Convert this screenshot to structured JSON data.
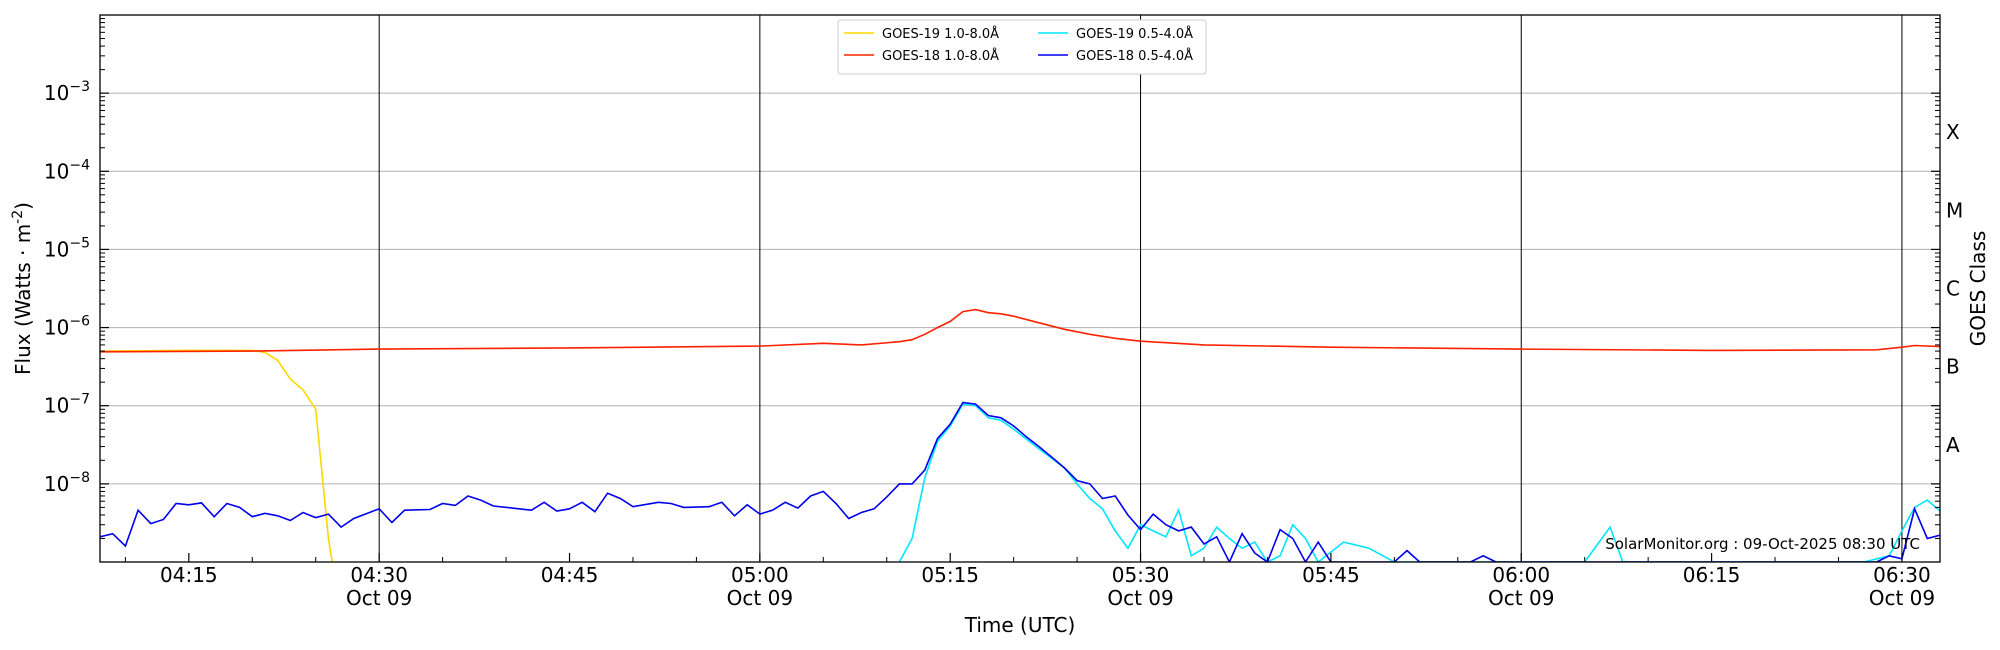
{
  "chart_data": {
    "type": "line",
    "title": "",
    "xlabel": "Time (UTC)",
    "ylabel": "Flux (Watts · m^-2)",
    "y2label": "GOES Class",
    "yscale": "log",
    "ylim": [
      1e-09,
      0.01
    ],
    "xlim": [
      "04:08",
      "06:33"
    ],
    "grid": "horizontal at decades",
    "legend_position": "top-center",
    "watermark": "SolarMonitor.org : 09-Oct-2025 08:30 UTC",
    "x_ticks": [
      {
        "t": "04:15",
        "label": "04:15",
        "sub": ""
      },
      {
        "t": "04:30",
        "label": "04:30",
        "sub": "Oct 09"
      },
      {
        "t": "04:45",
        "label": "04:45",
        "sub": ""
      },
      {
        "t": "05:00",
        "label": "05:00",
        "sub": "Oct 09"
      },
      {
        "t": "05:15",
        "label": "05:15",
        "sub": ""
      },
      {
        "t": "05:30",
        "label": "05:30",
        "sub": "Oct 09"
      },
      {
        "t": "05:45",
        "label": "05:45",
        "sub": ""
      },
      {
        "t": "06:00",
        "label": "06:00",
        "sub": "Oct 09"
      },
      {
        "t": "06:15",
        "label": "06:15",
        "sub": ""
      },
      {
        "t": "06:30",
        "label": "06:30",
        "sub": "Oct 09"
      }
    ],
    "vertical_lines": [
      "04:30",
      "05:00",
      "05:30",
      "06:00",
      "06:30"
    ],
    "y_ticks": [
      {
        "exp": -8,
        "label": "10",
        "sup": "−8"
      },
      {
        "exp": -7,
        "label": "10",
        "sup": "−7"
      },
      {
        "exp": -6,
        "label": "10",
        "sup": "−6"
      },
      {
        "exp": -5,
        "label": "10",
        "sup": "−5"
      },
      {
        "exp": -4,
        "label": "10",
        "sup": "−4"
      },
      {
        "exp": -3,
        "label": "10",
        "sup": "−3"
      }
    ],
    "goes_classes": [
      {
        "label": "A",
        "exp": -7.5
      },
      {
        "label": "B",
        "exp": -6.5
      },
      {
        "label": "C",
        "exp": -5.5
      },
      {
        "label": "M",
        "exp": -4.5
      },
      {
        "label": "X",
        "exp": -3.5
      }
    ],
    "series": [
      {
        "name": "GOES-19 1.0-8.0Å",
        "color": "#ffd700",
        "points": [
          [
            "04:08",
            5e-07
          ],
          [
            "04:15",
            5.1e-07
          ],
          [
            "04:20",
            5.1e-07
          ],
          [
            "04:21",
            4.8e-07
          ],
          [
            "04:22",
            3.8e-07
          ],
          [
            "04:23",
            2.2e-07
          ],
          [
            "04:24",
            1.6e-07
          ],
          [
            "04:25",
            9e-08
          ],
          [
            "04:26",
            2e-09
          ],
          [
            "04:26.3",
            1e-09
          ]
        ]
      },
      {
        "name": "GOES-18 1.0-8.0Å",
        "color": "#ff2200",
        "points": [
          [
            "04:08",
            4.9e-07
          ],
          [
            "04:20",
            5e-07
          ],
          [
            "04:30",
            5.3e-07
          ],
          [
            "04:45",
            5.5e-07
          ],
          [
            "05:00",
            5.8e-07
          ],
          [
            "05:05",
            6.3e-07
          ],
          [
            "05:08",
            6e-07
          ],
          [
            "05:11",
            6.6e-07
          ],
          [
            "05:12",
            7e-07
          ],
          [
            "05:13",
            8.2e-07
          ],
          [
            "05:14",
            1e-06
          ],
          [
            "05:15",
            1.2e-06
          ],
          [
            "05:16",
            1.6e-06
          ],
          [
            "05:17",
            1.7e-06
          ],
          [
            "05:18",
            1.55e-06
          ],
          [
            "05:19",
            1.5e-06
          ],
          [
            "05:20",
            1.4e-06
          ],
          [
            "05:22",
            1.15e-06
          ],
          [
            "05:24",
            9.5e-07
          ],
          [
            "05:26",
            8.2e-07
          ],
          [
            "05:28",
            7.3e-07
          ],
          [
            "05:30",
            6.7e-07
          ],
          [
            "05:35",
            6e-07
          ],
          [
            "05:45",
            5.6e-07
          ],
          [
            "06:00",
            5.3e-07
          ],
          [
            "06:15",
            5.1e-07
          ],
          [
            "06:28",
            5.2e-07
          ],
          [
            "06:30",
            5.6e-07
          ],
          [
            "06:31",
            5.9e-07
          ],
          [
            "06:33",
            5.7e-07
          ]
        ]
      },
      {
        "name": "GOES-19 0.5-4.0Å",
        "color": "#00e5ff",
        "points": [
          [
            "05:11",
            1e-09
          ],
          [
            "05:12",
            2e-09
          ],
          [
            "05:13",
            1.2e-08
          ],
          [
            "05:14",
            3.5e-08
          ],
          [
            "05:15",
            5.5e-08
          ],
          [
            "05:16",
            1.05e-07
          ],
          [
            "05:17",
            1e-07
          ],
          [
            "05:18",
            7e-08
          ],
          [
            "05:19",
            6.5e-08
          ],
          [
            "05:20",
            5e-08
          ],
          [
            "05:22",
            2.8e-08
          ],
          [
            "05:24",
            1.6e-08
          ],
          [
            "05:25",
            1e-08
          ],
          [
            "05:26",
            6.5e-09
          ],
          [
            "05:27",
            4.8e-09
          ],
          [
            "05:28",
            2.5e-09
          ],
          [
            "05:29",
            1.5e-09
          ],
          [
            "05:30",
            3e-09
          ],
          [
            "05:31",
            2.5e-09
          ],
          [
            "05:32",
            2.1e-09
          ],
          [
            "05:33",
            4.6e-09
          ],
          [
            "05:34",
            1.2e-09
          ],
          [
            "05:35",
            1.5e-09
          ],
          [
            "05:36",
            2.8e-09
          ],
          [
            "05:37",
            2e-09
          ],
          [
            "05:38",
            1.5e-09
          ],
          [
            "05:39",
            1.8e-09
          ],
          [
            "05:40",
            1e-09
          ],
          [
            "05:41",
            1.2e-09
          ],
          [
            "05:42",
            3e-09
          ],
          [
            "05:43",
            2e-09
          ],
          [
            "05:44",
            1e-09
          ],
          [
            "05:46",
            1.8e-09
          ],
          [
            "05:48",
            1.5e-09
          ],
          [
            "05:50",
            1e-09
          ],
          [
            "06:05",
            1e-09
          ],
          [
            "06:07",
            2.8e-09
          ],
          [
            "06:08",
            1e-09
          ],
          [
            "06:27",
            1e-09
          ],
          [
            "06:29",
            1.2e-09
          ],
          [
            "06:30",
            2.5e-09
          ],
          [
            "06:31",
            5e-09
          ],
          [
            "06:32",
            6.2e-09
          ],
          [
            "06:33",
            4.5e-09
          ]
        ]
      },
      {
        "name": "GOES-18 0.5-4.0Å",
        "color": "#0000ee",
        "points": [
          [
            "04:08",
            2.1e-09
          ],
          [
            "04:09",
            2.3e-09
          ],
          [
            "04:10",
            1.6e-09
          ],
          [
            "04:11",
            4.6e-09
          ],
          [
            "04:12",
            3.1e-09
          ],
          [
            "04:13",
            3.5e-09
          ],
          [
            "04:14",
            5.6e-09
          ],
          [
            "04:15",
            5.4e-09
          ],
          [
            "04:16",
            5.7e-09
          ],
          [
            "04:17",
            3.8e-09
          ],
          [
            "04:18",
            5.6e-09
          ],
          [
            "04:19",
            5e-09
          ],
          [
            "04:20",
            3.8e-09
          ],
          [
            "04:21",
            4.2e-09
          ],
          [
            "04:22",
            3.9e-09
          ],
          [
            "04:23",
            3.4e-09
          ],
          [
            "04:24",
            4.3e-09
          ],
          [
            "04:25",
            3.7e-09
          ],
          [
            "04:26",
            4.1e-09
          ],
          [
            "04:27",
            2.8e-09
          ],
          [
            "04:28",
            3.6e-09
          ],
          [
            "04:30",
            4.8e-09
          ],
          [
            "04:31",
            3.2e-09
          ],
          [
            "04:32",
            4.6e-09
          ],
          [
            "04:34",
            4.7e-09
          ],
          [
            "04:35",
            5.6e-09
          ],
          [
            "04:36",
            5.3e-09
          ],
          [
            "04:37",
            7e-09
          ],
          [
            "04:38",
            6.2e-09
          ],
          [
            "04:39",
            5.2e-09
          ],
          [
            "04:41",
            4.8e-09
          ],
          [
            "04:42",
            4.6e-09
          ],
          [
            "04:43",
            5.8e-09
          ],
          [
            "04:44",
            4.5e-09
          ],
          [
            "04:45",
            4.8e-09
          ],
          [
            "04:46",
            5.8e-09
          ],
          [
            "04:47",
            4.4e-09
          ],
          [
            "04:48",
            7.6e-09
          ],
          [
            "04:49",
            6.5e-09
          ],
          [
            "04:50",
            5.1e-09
          ],
          [
            "04:52",
            5.8e-09
          ],
          [
            "04:53",
            5.6e-09
          ],
          [
            "04:54",
            5e-09
          ],
          [
            "04:56",
            5.1e-09
          ],
          [
            "04:57",
            5.8e-09
          ],
          [
            "04:58",
            3.9e-09
          ],
          [
            "04:59",
            5.4e-09
          ],
          [
            "05:00",
            4.1e-09
          ],
          [
            "05:01",
            4.6e-09
          ],
          [
            "05:02",
            5.8e-09
          ],
          [
            "05:03",
            4.9e-09
          ],
          [
            "05:04",
            7e-09
          ],
          [
            "05:05",
            8e-09
          ],
          [
            "05:06",
            5.6e-09
          ],
          [
            "05:07",
            3.6e-09
          ],
          [
            "05:08",
            4.3e-09
          ],
          [
            "05:09",
            4.8e-09
          ],
          [
            "05:10",
            6.8e-09
          ],
          [
            "05:11",
            1e-08
          ],
          [
            "05:12",
            1e-08
          ],
          [
            "05:13",
            1.5e-08
          ],
          [
            "05:14",
            3.8e-08
          ],
          [
            "05:15",
            5.8e-08
          ],
          [
            "05:16",
            1.1e-07
          ],
          [
            "05:17",
            1.05e-07
          ],
          [
            "05:18",
            7.5e-08
          ],
          [
            "05:19",
            7e-08
          ],
          [
            "05:20",
            5.5e-08
          ],
          [
            "05:21",
            4e-08
          ],
          [
            "05:22",
            3e-08
          ],
          [
            "05:23",
            2.2e-08
          ],
          [
            "05:24",
            1.6e-08
          ],
          [
            "05:25",
            1.1e-08
          ],
          [
            "05:26",
            1e-08
          ],
          [
            "05:27",
            6.5e-09
          ],
          [
            "05:28",
            7e-09
          ],
          [
            "05:29",
            4e-09
          ],
          [
            "05:30",
            2.6e-09
          ],
          [
            "05:31",
            4.1e-09
          ],
          [
            "05:32",
            3e-09
          ],
          [
            "05:33",
            2.5e-09
          ],
          [
            "05:34",
            2.8e-09
          ],
          [
            "05:35",
            1.7e-09
          ],
          [
            "05:36",
            2.1e-09
          ],
          [
            "05:37",
            1e-09
          ],
          [
            "05:38",
            2.3e-09
          ],
          [
            "05:39",
            1.3e-09
          ],
          [
            "05:40",
            1e-09
          ],
          [
            "05:41",
            2.6e-09
          ],
          [
            "05:42",
            2e-09
          ],
          [
            "05:43",
            1e-09
          ],
          [
            "05:44",
            1.8e-09
          ],
          [
            "05:45",
            1e-09
          ],
          [
            "05:50",
            1e-09
          ],
          [
            "05:51",
            1.4e-09
          ],
          [
            "05:52",
            1e-09
          ],
          [
            "05:56",
            1e-09
          ],
          [
            "05:57",
            1.2e-09
          ],
          [
            "05:58",
            1e-09
          ],
          [
            "06:28",
            1e-09
          ],
          [
            "06:29",
            1.2e-09
          ],
          [
            "06:30",
            1.1e-09
          ],
          [
            "06:31",
            4.8e-09
          ],
          [
            "06:32",
            2e-09
          ],
          [
            "06:33",
            2.2e-09
          ]
        ]
      }
    ]
  }
}
